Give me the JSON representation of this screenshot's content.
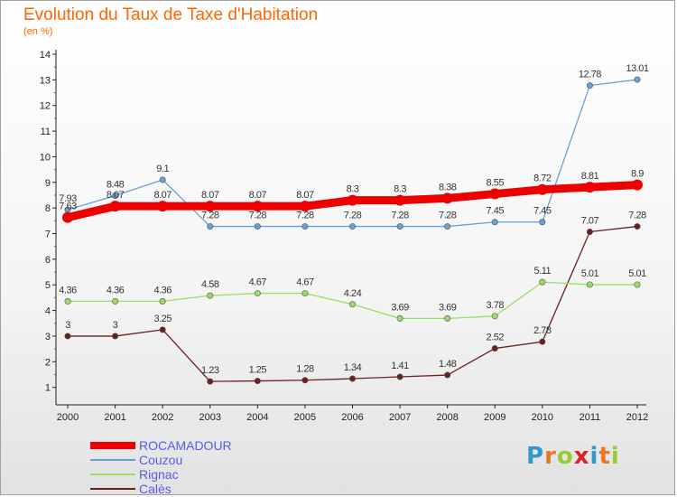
{
  "title": "Evolution du Taux de Taxe d'Habitation",
  "subtitle": "(en %)",
  "logo": {
    "text": "Proxiti",
    "letter_colors": [
      "#3399cc",
      "#e87820",
      "#99cc33",
      "#dd2222",
      "#3399cc",
      "#e87820",
      "#99cc33"
    ]
  },
  "chart_data": {
    "type": "line",
    "x": [
      "2000",
      "2001",
      "2002",
      "2003",
      "2004",
      "2005",
      "2006",
      "2007",
      "2008",
      "2009",
      "2010",
      "2011",
      "2012"
    ],
    "ylim": [
      0.6,
      14
    ],
    "yticks": [
      "1",
      "2",
      "3",
      "4",
      "5",
      "6",
      "7",
      "8",
      "9",
      "10",
      "11",
      "12",
      "13",
      "14"
    ],
    "grid": false,
    "legend_position": "bottom-left",
    "series": [
      {
        "name": "ROCAMADOUR",
        "color": "#ee0000",
        "values": [
          7.63,
          8.07,
          8.07,
          8.07,
          8.07,
          8.07,
          8.3,
          8.3,
          8.38,
          8.55,
          8.72,
          8.81,
          8.9
        ],
        "labels": [
          "7.63",
          "8.07",
          "8.07",
          "8.07",
          "8.07",
          "8.07",
          "8.3",
          "8.3",
          "8.38",
          "8.55",
          "8.72",
          "8.81",
          "8.9"
        ]
      },
      {
        "name": "Couzou",
        "color": "#6aa0d2",
        "values": [
          7.93,
          8.48,
          9.1,
          7.28,
          7.28,
          7.28,
          7.28,
          7.28,
          7.28,
          7.45,
          7.45,
          12.78,
          13.01
        ],
        "labels": [
          "7.93",
          "8.48",
          "9.1",
          "7.28",
          "7.28",
          "7.28",
          "7.28",
          "7.28",
          "7.28",
          "7.45",
          "7.45",
          "12.78",
          "13.01"
        ]
      },
      {
        "name": "Rignac",
        "color": "#99dd66",
        "values": [
          4.36,
          4.36,
          4.36,
          4.58,
          4.67,
          4.67,
          4.24,
          3.69,
          3.69,
          3.78,
          5.11,
          5.01,
          5.01
        ],
        "labels": [
          "4.36",
          "4.36",
          "4.36",
          "4.58",
          "4.67",
          "4.67",
          "4.24",
          "3.69",
          "3.69",
          "3.78",
          "5.11",
          "5.01",
          "5.01"
        ]
      },
      {
        "name": "Calès",
        "color": "#6b1f1f",
        "values": [
          3,
          3,
          3.25,
          1.23,
          1.25,
          1.28,
          1.34,
          1.41,
          1.48,
          2.52,
          2.78,
          7.07,
          7.28
        ],
        "labels": [
          "3",
          "3",
          "3.25",
          "1.23",
          "1.25",
          "1.28",
          "1.34",
          "1.41",
          "1.48",
          "2.52",
          "2.78",
          "7.07",
          "7.28"
        ]
      }
    ]
  }
}
